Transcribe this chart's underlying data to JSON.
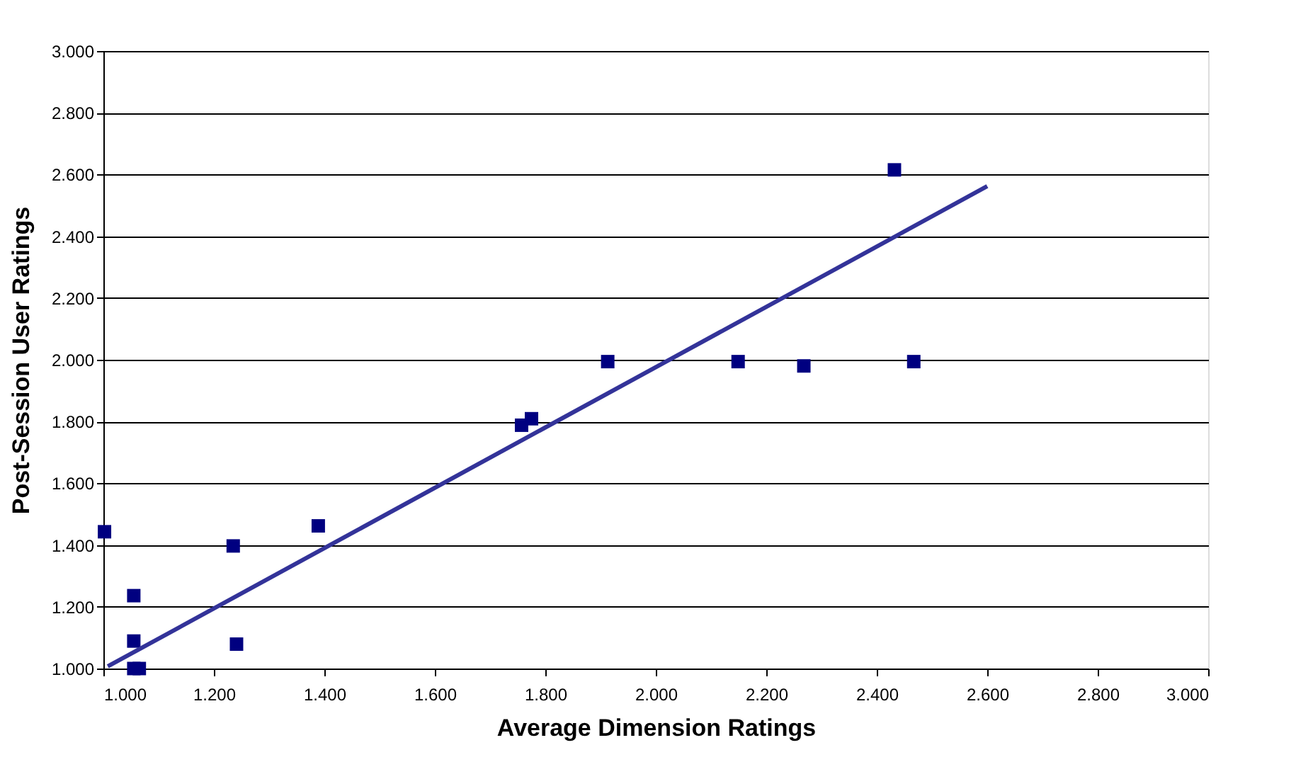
{
  "chart_data": {
    "type": "scatter",
    "xlabel": "Average Dimension Ratings",
    "ylabel": "Post-Session User Ratings",
    "xlim": [
      1.0,
      3.0
    ],
    "ylim": [
      1.0,
      3.0
    ],
    "xticks": [
      {
        "value": 1.0,
        "label": "1.000"
      },
      {
        "value": 1.2,
        "label": "1.200"
      },
      {
        "value": 1.4,
        "label": "1.400"
      },
      {
        "value": 1.6,
        "label": "1.600"
      },
      {
        "value": 1.8,
        "label": "1.800"
      },
      {
        "value": 2.0,
        "label": "2.000"
      },
      {
        "value": 2.2,
        "label": "2.200"
      },
      {
        "value": 2.4,
        "label": "2.400"
      },
      {
        "value": 2.6,
        "label": "2.600"
      },
      {
        "value": 2.8,
        "label": "2.800"
      },
      {
        "value": 3.0,
        "label": "3.000"
      }
    ],
    "yticks": [
      {
        "value": 1.0,
        "label": "1.000"
      },
      {
        "value": 1.2,
        "label": "1.200"
      },
      {
        "value": 1.4,
        "label": "1.400"
      },
      {
        "value": 1.6,
        "label": "1.600"
      },
      {
        "value": 1.8,
        "label": "1.800"
      },
      {
        "value": 2.0,
        "label": "2.000"
      },
      {
        "value": 2.2,
        "label": "2.200"
      },
      {
        "value": 2.4,
        "label": "2.400"
      },
      {
        "value": 2.6,
        "label": "2.600"
      },
      {
        "value": 2.8,
        "label": "2.800"
      },
      {
        "value": 3.0,
        "label": "3.000"
      }
    ],
    "grid": "y",
    "marker": "square",
    "series": [
      {
        "color": "#000080",
        "x": [
          1.002,
          1.055,
          1.055,
          1.055,
          1.065,
          1.235,
          1.241,
          1.389,
          1.757,
          1.775,
          1.913,
          2.149,
          2.268,
          2.432,
          2.467
        ],
        "values": [
          1.443,
          1.236,
          1.089,
          1.0,
          1.0,
          1.397,
          1.079,
          1.462,
          1.788,
          1.809,
          1.994,
          1.994,
          1.98,
          2.615,
          1.994
        ]
      },
      {
        "type": "line",
        "color": "#333399",
        "line_style": "solid",
        "marker": "none",
        "x": [
          1.008,
          2.6
        ],
        "values": [
          1.007,
          2.562
        ]
      }
    ]
  }
}
